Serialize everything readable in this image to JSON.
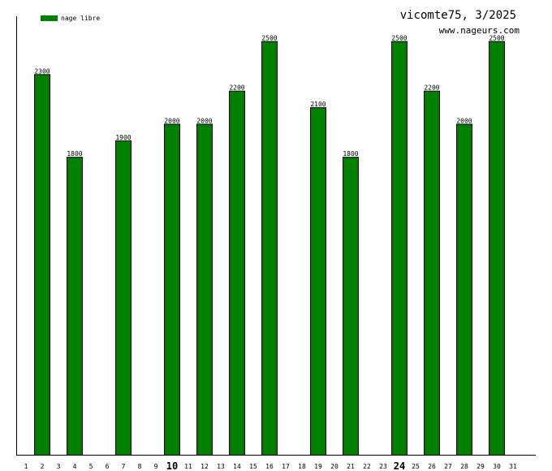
{
  "chart_data": {
    "type": "bar",
    "title": "vicomte75, 3/2025",
    "subtitle": "www.nageurs.com",
    "legend": [
      {
        "name": "nage libre",
        "color": "#008000"
      }
    ],
    "legend_position": "top-left",
    "bar_color": "#008000",
    "grid": false,
    "categories": [
      "1",
      "2",
      "3",
      "4",
      "5",
      "6",
      "7",
      "8",
      "9",
      "10",
      "11",
      "12",
      "13",
      "14",
      "15",
      "16",
      "17",
      "18",
      "19",
      "20",
      "21",
      "22",
      "23",
      "24",
      "25",
      "26",
      "27",
      "28",
      "29",
      "30",
      "31"
    ],
    "emphasized_categories": [
      "10",
      "24"
    ],
    "series": [
      {
        "name": "nage libre",
        "values": [
          null,
          2300,
          null,
          1800,
          null,
          null,
          1900,
          null,
          null,
          2000,
          null,
          2000,
          null,
          2200,
          null,
          2500,
          null,
          null,
          2100,
          null,
          1800,
          null,
          null,
          2500,
          null,
          2200,
          null,
          2000,
          null,
          2500,
          null
        ]
      }
    ],
    "ylim": [
      0,
      2650
    ]
  }
}
